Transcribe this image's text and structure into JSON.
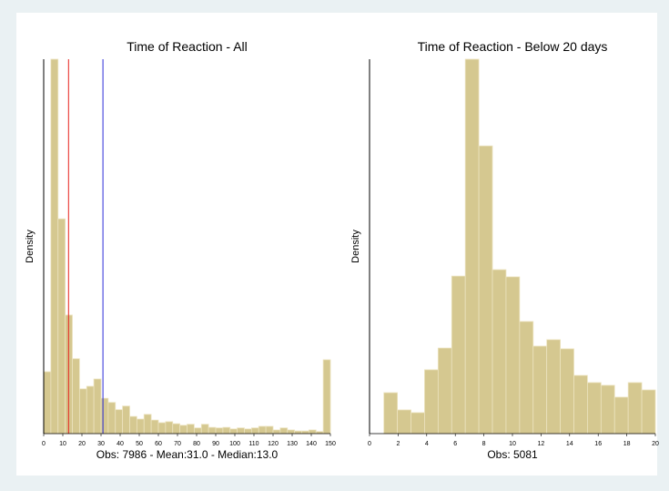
{
  "chart_data": [
    {
      "type": "histogram",
      "title": "Time of Reaction - All",
      "xlabel": "Obs: 7986 - Mean:31.0 - Median:13.0",
      "ylabel": "Density",
      "bins": [
        0,
        3.75,
        7.5,
        11.25,
        15,
        18.75,
        22.5,
        26.25,
        30,
        33.75,
        37.5,
        41.25,
        45,
        48.75,
        52.5,
        56.25,
        60,
        63.75,
        67.5,
        71.25,
        75,
        78.75,
        82.5,
        86.25,
        90,
        93.75,
        97.5,
        101.25,
        105,
        108.75,
        112.5,
        116.25,
        120,
        123.75,
        127.5,
        131.25,
        135,
        138.75,
        142.5,
        146.25,
        150
      ],
      "values": [
        0.0119,
        0.072,
        0.0413,
        0.0228,
        0.0144,
        0.0086,
        0.0091,
        0.0105,
        0.0068,
        0.006,
        0.0046,
        0.0053,
        0.0033,
        0.0028,
        0.0037,
        0.0026,
        0.0021,
        0.0023,
        0.0019,
        0.0016,
        0.0018,
        0.0011,
        0.0018,
        0.0012,
        0.0011,
        0.0012,
        0.0009,
        0.0011,
        0.0009,
        0.0011,
        0.0014,
        0.0014,
        0.0007,
        0.0011,
        0.0007,
        0.0005,
        0.0005,
        0.0007,
        0.0004,
        0.0142
      ],
      "color": "#d5c890",
      "reference_lines": [
        {
          "value": 13.0,
          "color": "#e8201c"
        },
        {
          "value": 31.0,
          "color": "#2b2bd8"
        }
      ],
      "xlim": [
        0,
        150
      ],
      "xticks": [
        0,
        10,
        20,
        30,
        40,
        50,
        60,
        70,
        80,
        90,
        100,
        110,
        120,
        130,
        140,
        150
      ],
      "ylim": [
        0,
        0.072
      ]
    },
    {
      "type": "histogram",
      "title": "Time of Reaction - Below 20 days",
      "xlabel": "Obs: 5081",
      "ylabel": "Density",
      "bins": [
        1,
        1.95,
        2.9,
        3.85,
        4.8,
        5.75,
        6.7,
        7.65,
        8.6,
        9.55,
        10.5,
        11.45,
        12.4,
        13.35,
        14.3,
        15.25,
        16.2,
        17.15,
        18.1,
        19.05,
        20
      ],
      "values": [
        0.0211,
        0.0122,
        0.0108,
        0.0329,
        0.0441,
        0.0812,
        0.193,
        0.1483,
        0.0845,
        0.0808,
        0.0578,
        0.0451,
        0.0484,
        0.0437,
        0.03,
        0.0263,
        0.0249,
        0.0188,
        0.0263,
        0.0225
      ],
      "color": "#d5c890",
      "xlim": [
        0,
        20
      ],
      "xticks": [
        0,
        2,
        4,
        6,
        8,
        10,
        12,
        14,
        16,
        18,
        20
      ],
      "ylim": [
        0,
        0.193
      ]
    }
  ]
}
